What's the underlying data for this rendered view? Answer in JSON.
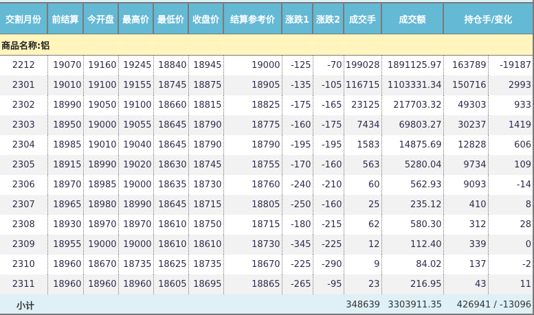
{
  "headers": [
    "交割月份",
    "前结算",
    "今开盘",
    "最高价",
    "最低价",
    "收盘价",
    "结算参考价",
    "涨跌1",
    "涨跌2",
    "成交手",
    "成交额",
    "持仓手/变化"
  ],
  "category_label": "商品名称:铝",
  "rows": [
    [
      "2212",
      "19070",
      "19160",
      "19245",
      "18840",
      "18945",
      "19000",
      "-125",
      "-70",
      "199028",
      "1891125.97",
      "163789",
      "-19187"
    ],
    [
      "2301",
      "19010",
      "19100",
      "19155",
      "18745",
      "18875",
      "18905",
      "-135",
      "-105",
      "116715",
      "1103331.34",
      "150716",
      "2993"
    ],
    [
      "2302",
      "18990",
      "19050",
      "19100",
      "18660",
      "18815",
      "18825",
      "-175",
      "-165",
      "23125",
      "217703.32",
      "49303",
      "933"
    ],
    [
      "2303",
      "18950",
      "19000",
      "19055",
      "18645",
      "18790",
      "18775",
      "-160",
      "-175",
      "7434",
      "69803.27",
      "30237",
      "1419"
    ],
    [
      "2304",
      "18985",
      "19010",
      "19040",
      "18645",
      "18790",
      "18790",
      "-195",
      "-195",
      "1583",
      "14875.69",
      "12828",
      "606"
    ],
    [
      "2305",
      "18915",
      "18990",
      "19020",
      "18630",
      "18745",
      "18755",
      "-170",
      "-160",
      "563",
      "5280.04",
      "9734",
      "109"
    ],
    [
      "2306",
      "18970",
      "18985",
      "19000",
      "18635",
      "18730",
      "18760",
      "-240",
      "-210",
      "60",
      "562.93",
      "9093",
      "-14"
    ],
    [
      "2307",
      "18965",
      "18980",
      "18990",
      "18645",
      "18715",
      "18805",
      "-250",
      "-160",
      "25",
      "235.12",
      "410",
      "8"
    ],
    [
      "2308",
      "18930",
      "18970",
      "18970",
      "18610",
      "18750",
      "18715",
      "-180",
      "-215",
      "62",
      "580.30",
      "312",
      "28"
    ],
    [
      "2309",
      "18955",
      "19000",
      "19000",
      "18610",
      "18610",
      "18730",
      "-345",
      "-225",
      "12",
      "112.40",
      "339",
      "0"
    ],
    [
      "2310",
      "18960",
      "18670",
      "18735",
      "18625",
      "18735",
      "18670",
      "-225",
      "-290",
      "9",
      "84.02",
      "137",
      "-2"
    ],
    [
      "2311",
      "18960",
      "18960",
      "18960",
      "18605",
      "18695",
      "18865",
      "-265",
      "-95",
      "23",
      "216.95",
      "43",
      "11"
    ]
  ],
  "summary": {
    "label": "小计",
    "volume": "348639",
    "turnover": "3303911.35",
    "open_interest": "426941 / -13096"
  },
  "colors": {
    "header_bg": "#64b9d4",
    "category_bg": "#fff5bd",
    "summary_bg": "#dff0f7",
    "alt_row_bg": "#f2f2f2"
  }
}
